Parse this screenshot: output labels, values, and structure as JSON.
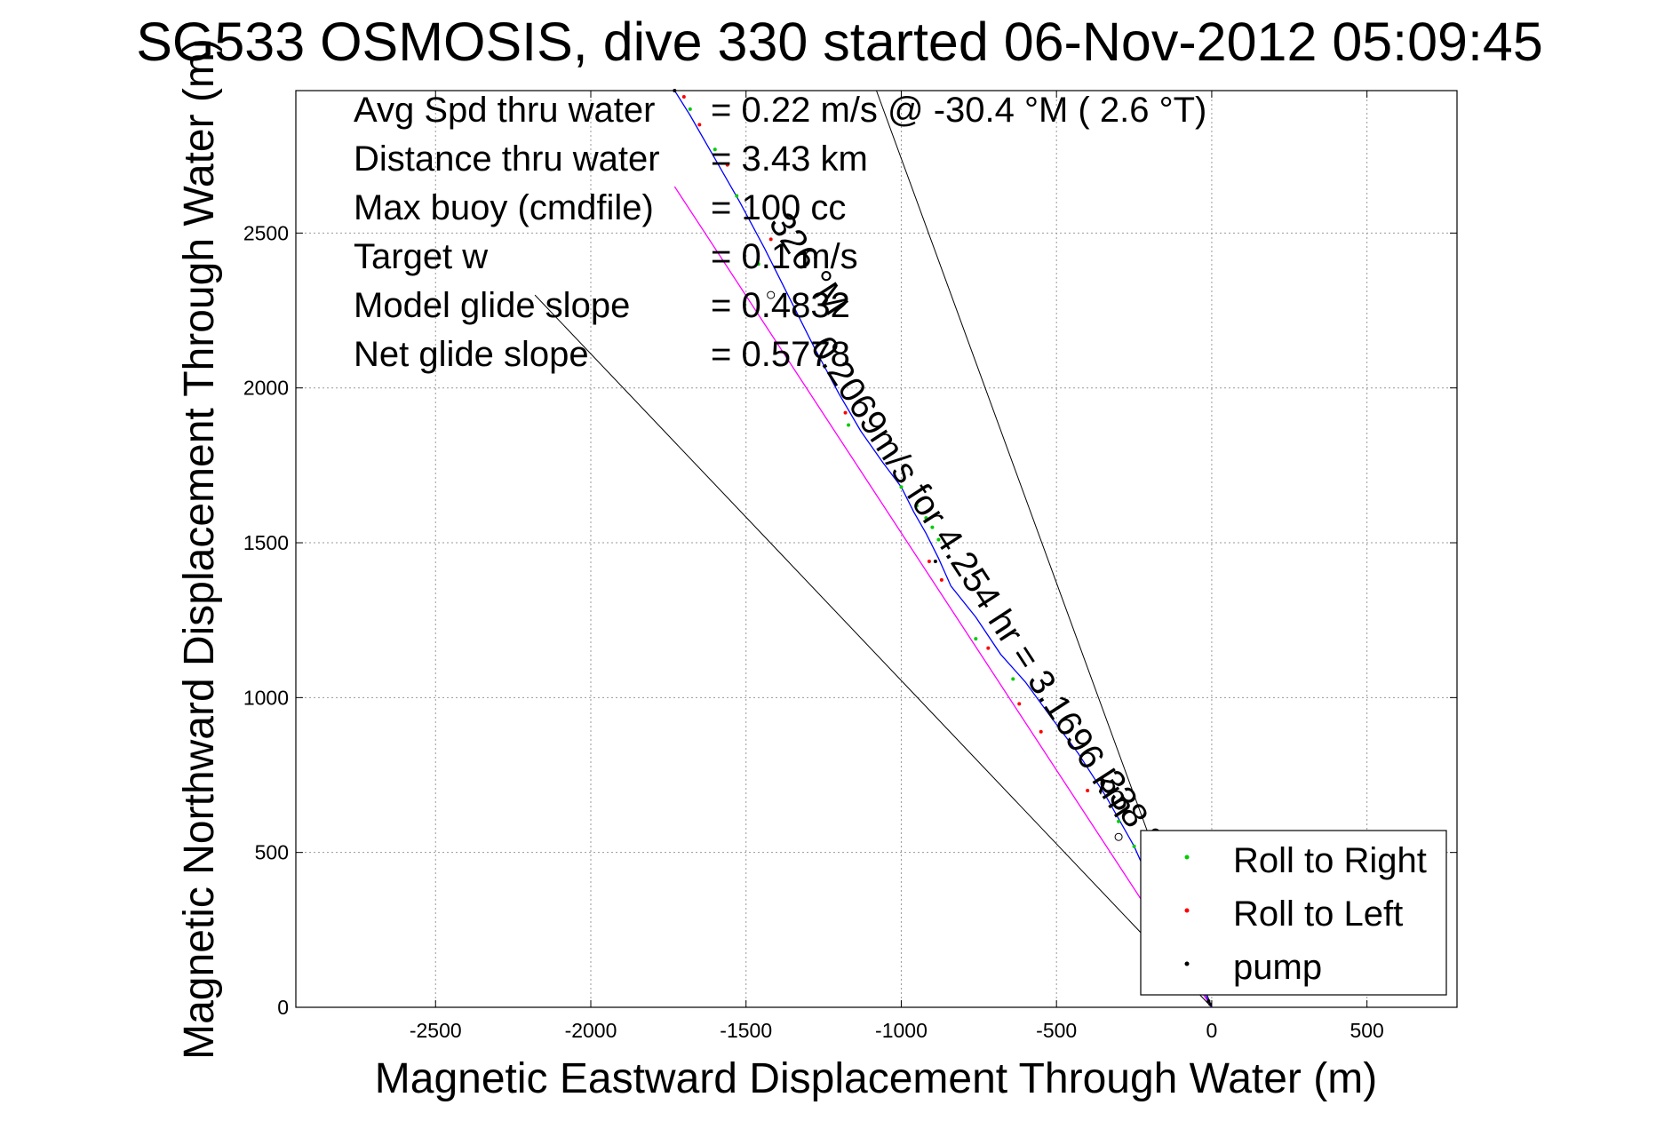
{
  "chart_data": {
    "type": "line",
    "title": "SG533 OSMOSIS, dive 330 started 06-Nov-2012 05:09:45",
    "xlabel": "Magnetic Eastward Displacement Through Water (m)",
    "ylabel": "Magnetic Northward Displacement Through Water (m)",
    "xlim": [
      -2950,
      790
    ],
    "ylim": [
      0,
      2960
    ],
    "xticks": [
      -2500,
      -2000,
      -1500,
      -1000,
      -500,
      0,
      500
    ],
    "yticks": [
      0,
      500,
      1000,
      1500,
      2000,
      2500
    ],
    "grid": true,
    "legend_position": "bottom-right",
    "stats": [
      {
        "label": "Avg Spd thru water",
        "value": "=  0.22 m/s @ -30.4 °M (  2.6 °T)"
      },
      {
        "label": "Distance thru water",
        "value": "=  3.43 km"
      },
      {
        "label": "Max buoy (cmdfile)",
        "value": "= 100 cc"
      },
      {
        "label": "Target w",
        "value": "= 0.1 m/s"
      },
      {
        "label": "Model glide slope",
        "value": "= 0.4832"
      },
      {
        "label": "Net glide slope",
        "value": "= 0.5778"
      }
    ],
    "track": {
      "x": [
        0,
        -80,
        -170,
        -250,
        -340,
        -430,
        -520,
        -600,
        -680,
        -760,
        -840,
        -880,
        -920,
        -960,
        -1000,
        -1060,
        -1130,
        -1200,
        -1280,
        -1360,
        -1440,
        -1520,
        -1600,
        -1680,
        -1730
      ],
      "y": [
        0,
        160,
        340,
        520,
        680,
        820,
        940,
        1050,
        1140,
        1260,
        1360,
        1450,
        1530,
        1600,
        1680,
        1760,
        1860,
        1980,
        2130,
        2290,
        2450,
        2600,
        2740,
        2880,
        2960
      ]
    },
    "net_line": {
      "x": [
        0,
        -1730
      ],
      "y": [
        0,
        2650
      ]
    },
    "guide_lines": [
      {
        "x": [
          0,
          -2180
        ],
        "y": [
          0,
          2300
        ]
      },
      {
        "x": [
          0,
          -1080
        ],
        "y": [
          0,
          2960
        ]
      }
    ],
    "green_dots": {
      "x": [
        -1680,
        -1600,
        -1530,
        -1460,
        -1170,
        -1000,
        -950,
        -920,
        -900,
        -880,
        -760,
        -640,
        -300,
        -250,
        -220
      ],
      "y": [
        2900,
        2770,
        2620,
        2400,
        1880,
        1680,
        1620,
        1580,
        1550,
        1510,
        1190,
        1060,
        600,
        520,
        470
      ]
    },
    "red_dots": {
      "x": [
        -1700,
        -1650,
        -1560,
        -1420,
        -1180,
        -910,
        -870,
        -720,
        -620,
        -550,
        -400
      ],
      "y": [
        2940,
        2850,
        2720,
        2480,
        1920,
        1440,
        1380,
        1160,
        980,
        890,
        700
      ]
    },
    "black_dots": {
      "x": [
        -1730,
        -890,
        -10,
        -5
      ],
      "y": [
        2960,
        1440,
        20,
        10
      ]
    },
    "circle_markers": {
      "x": [
        -1420,
        -300
      ],
      "y": [
        2300,
        550
      ]
    },
    "rotated_labels": [
      {
        "text": "326 °M",
        "x": -1330,
        "y": 2380,
        "angle": 57
      },
      {
        "text": "0.2069m/s for 4.254 hr = 3.1696 km",
        "x": -800,
        "y": 1370,
        "angle": 57
      },
      {
        "text": "338 °M",
        "x": -270,
        "y": 580,
        "angle": 57
      }
    ],
    "legend": [
      {
        "label": "Roll to Right",
        "color": "#00cc00"
      },
      {
        "label": "Roll to Left",
        "color": "#ff0000"
      },
      {
        "label": "pump",
        "color": "#000000"
      }
    ],
    "colors": {
      "track": "#0000ff",
      "net_line": "#ff00ff",
      "guide": "#000000",
      "grid": "#999999"
    }
  }
}
